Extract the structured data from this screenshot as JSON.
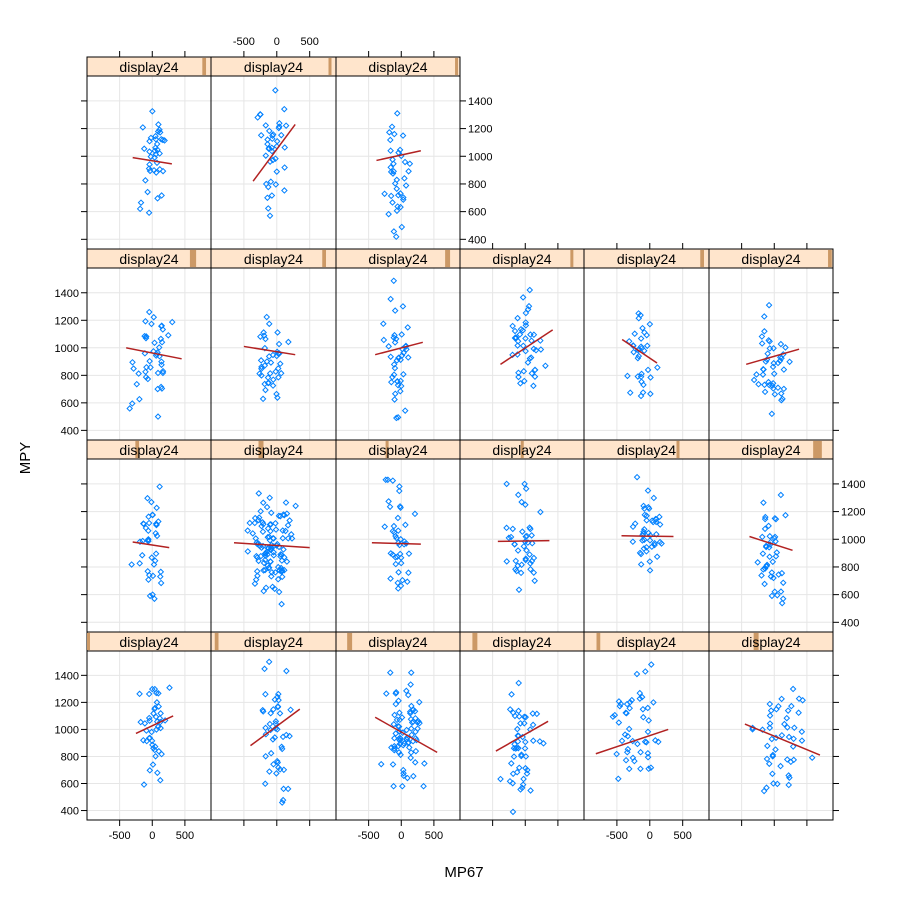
{
  "chart_data": {
    "type": "scatter",
    "layout": "lattice trellis, 4 rows x 6 columns, 21 panels with points and fitted regression lines",
    "xlabel": "MP67",
    "ylabel": "MPY",
    "xlim": [
      -1000,
      900
    ],
    "ylim": [
      330,
      1580
    ],
    "x_ticks": [
      -500,
      0,
      500
    ],
    "y_ticks": [
      400,
      600,
      800,
      1000,
      1200,
      1400
    ],
    "point_color": "#0080ff",
    "line_color": "#b22222",
    "strip_color": "#ffe5cc",
    "shingle_color": "#cc9966",
    "grid": true,
    "panels": [
      {
        "row": 0,
        "col": 0,
        "strip": "display24",
        "shingle": [
          0.93,
          0.96
        ],
        "fit": [
          [
            -300,
            990
          ],
          [
            300,
            945
          ]
        ],
        "seed": 11,
        "n": 38,
        "xr": [
          -350,
          350
        ],
        "yr": [
          540,
          1340
        ]
      },
      {
        "row": 0,
        "col": 1,
        "strip": "display24",
        "shingle": [
          0.94,
          0.96
        ],
        "fit": [
          [
            -360,
            820
          ],
          [
            280,
            1230
          ]
        ],
        "seed": 12,
        "n": 40,
        "xr": [
          -400,
          320
        ],
        "yr": [
          570,
          1510
        ]
      },
      {
        "row": 0,
        "col": 2,
        "strip": "display24",
        "shingle": [
          0.96,
          0.98
        ],
        "fit": [
          [
            -380,
            970
          ],
          [
            300,
            1040
          ]
        ],
        "seed": 13,
        "n": 38,
        "xr": [
          -400,
          300
        ],
        "yr": [
          410,
          1310
        ]
      },
      {
        "row": 1,
        "col": 0,
        "strip": "display24",
        "shingle": [
          0.83,
          0.88
        ],
        "fit": [
          [
            -400,
            1000
          ],
          [
            450,
            920
          ]
        ],
        "seed": 21,
        "n": 44,
        "xr": [
          -480,
          500
        ],
        "yr": [
          500,
          1260
        ]
      },
      {
        "row": 1,
        "col": 1,
        "strip": "display24",
        "shingle": [
          0.89,
          0.92
        ],
        "fit": [
          [
            -500,
            1010
          ],
          [
            280,
            950
          ]
        ],
        "seed": 22,
        "n": 40,
        "xr": [
          -520,
          330
        ],
        "yr": [
          560,
          1320
        ]
      },
      {
        "row": 1,
        "col": 2,
        "strip": "display24",
        "shingle": [
          0.88,
          0.92
        ],
        "fit": [
          [
            -400,
            950
          ],
          [
            330,
            1040
          ]
        ],
        "seed": 23,
        "n": 42,
        "xr": [
          -420,
          330
        ],
        "yr": [
          490,
          1490
        ]
      },
      {
        "row": 1,
        "col": 3,
        "strip": "display24",
        "shingle": [
          0.89,
          0.91
        ],
        "fit": [
          [
            -380,
            880
          ],
          [
            420,
            1130
          ]
        ],
        "seed": 24,
        "n": 44,
        "xr": [
          -360,
          420
        ],
        "yr": [
          600,
          1420
        ]
      },
      {
        "row": 1,
        "col": 4,
        "strip": "display24",
        "shingle": [
          0.93,
          0.96
        ],
        "fit": [
          [
            -420,
            1060
          ],
          [
            110,
            890
          ]
        ],
        "seed": 25,
        "n": 34,
        "xr": [
          -450,
          180
        ],
        "yr": [
          650,
          1310
        ]
      },
      {
        "row": 1,
        "col": 5,
        "strip": "display24",
        "shingle": [
          0.96,
          0.99
        ],
        "fit": [
          [
            -430,
            880
          ],
          [
            380,
            990
          ]
        ],
        "seed": 26,
        "n": 44,
        "xr": [
          -420,
          400
        ],
        "yr": [
          520,
          1310
        ]
      },
      {
        "row": 2,
        "col": 0,
        "strip": "display24",
        "shingle": [
          0.39,
          0.42
        ],
        "fit": [
          [
            -300,
            980
          ],
          [
            260,
            940
          ]
        ],
        "seed": 31,
        "n": 40,
        "xr": [
          -350,
          280
        ],
        "yr": [
          570,
          1380
        ]
      },
      {
        "row": 2,
        "col": 1,
        "strip": "display24",
        "shingle": [
          0.38,
          0.42
        ],
        "fit": [
          [
            -650,
            975
          ],
          [
            500,
            940
          ]
        ],
        "seed": 32,
        "n": 110,
        "xr": [
          -650,
          520
        ],
        "yr": [
          500,
          1340
        ]
      },
      {
        "row": 2,
        "col": 2,
        "strip": "display24",
        "shingle": [
          0.4,
          0.42
        ],
        "fit": [
          [
            -450,
            975
          ],
          [
            300,
            965
          ]
        ],
        "seed": 33,
        "n": 42,
        "xr": [
          -480,
          330
        ],
        "yr": [
          470,
          1430
        ]
      },
      {
        "row": 2,
        "col": 3,
        "strip": "display24",
        "shingle": [
          0.49,
          0.51
        ],
        "fit": [
          [
            -420,
            985
          ],
          [
            370,
            990
          ]
        ],
        "seed": 34,
        "n": 42,
        "xr": [
          -450,
          400
        ],
        "yr": [
          620,
          1400
        ]
      },
      {
        "row": 2,
        "col": 4,
        "strip": "display24",
        "shingle": [
          0.74,
          0.76
        ],
        "fit": [
          [
            -430,
            1025
          ],
          [
            360,
            1020
          ]
        ],
        "seed": 35,
        "n": 44,
        "xr": [
          -430,
          380
        ],
        "yr": [
          700,
          1450
        ]
      },
      {
        "row": 2,
        "col": 5,
        "strip": "display24",
        "shingle": [
          0.84,
          0.91
        ],
        "fit": [
          [
            -380,
            1020
          ],
          [
            280,
            920
          ]
        ],
        "seed": 36,
        "n": 44,
        "xr": [
          -400,
          330
        ],
        "yr": [
          480,
          1320
        ]
      },
      {
        "row": 3,
        "col": 0,
        "strip": "display24",
        "shingle": [
          0.0,
          0.02
        ],
        "fit": [
          [
            -250,
            970
          ],
          [
            320,
            1100
          ]
        ],
        "seed": 41,
        "n": 44,
        "xr": [
          -300,
          350
        ],
        "yr": [
          560,
          1450
        ]
      },
      {
        "row": 3,
        "col": 1,
        "strip": "display24",
        "shingle": [
          0.03,
          0.06
        ],
        "fit": [
          [
            -400,
            880
          ],
          [
            350,
            1150
          ]
        ],
        "seed": 42,
        "n": 46,
        "xr": [
          -420,
          350
        ],
        "yr": [
          440,
          1500
        ]
      },
      {
        "row": 3,
        "col": 2,
        "strip": "display24",
        "shingle": [
          0.09,
          0.13
        ],
        "fit": [
          [
            -400,
            1090
          ],
          [
            550,
            830
          ]
        ],
        "seed": 43,
        "n": 80,
        "xr": [
          -450,
          550
        ],
        "yr": [
          580,
          1420
        ]
      },
      {
        "row": 3,
        "col": 3,
        "strip": "display24",
        "shingle": [
          0.1,
          0.14
        ],
        "fit": [
          [
            -450,
            840
          ],
          [
            350,
            1060
          ]
        ],
        "seed": 44,
        "n": 50,
        "xr": [
          -450,
          400
        ],
        "yr": [
          390,
          1360
        ]
      },
      {
        "row": 3,
        "col": 4,
        "strip": "display24",
        "shingle": [
          0.1,
          0.13
        ],
        "fit": [
          [
            -820,
            820
          ],
          [
            280,
            1000
          ]
        ],
        "seed": 45,
        "n": 48,
        "xr": [
          -820,
          430
        ],
        "yr": [
          520,
          1500
        ]
      },
      {
        "row": 3,
        "col": 5,
        "strip": "display24",
        "shingle": [
          0.36,
          0.4
        ],
        "fit": [
          [
            -450,
            1040
          ],
          [
            700,
            810
          ]
        ],
        "seed": 46,
        "n": 48,
        "xr": [
          -450,
          680
        ],
        "yr": [
          490,
          1350
        ]
      }
    ]
  }
}
